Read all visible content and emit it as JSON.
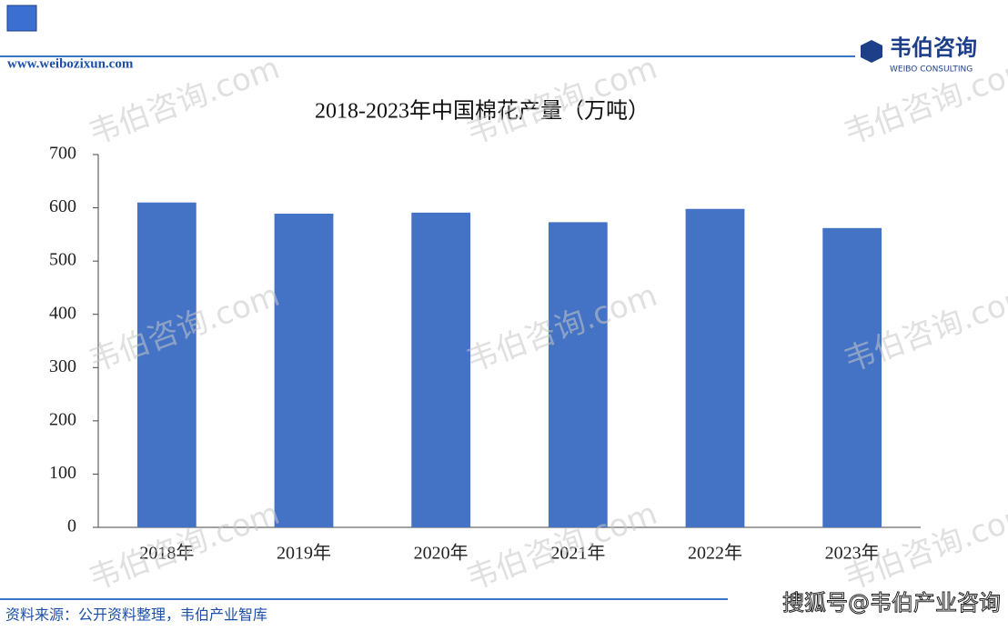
{
  "header": {
    "url": "www.weibozixun.com",
    "logo_cn": "韦伯咨询",
    "logo_en": "WEIBO CONSULTING"
  },
  "footer": {
    "source": "资料来源：公开资料整理，韦伯产业智库",
    "overlay": "搜狐号@韦伯产业咨询"
  },
  "watermark": "韦伯咨询.com",
  "chart_data": {
    "type": "bar",
    "title": "2018-2023年中国棉花产量（万吨）",
    "categories": [
      "2018年",
      "2019年",
      "2020年",
      "2021年",
      "2022年",
      "2023年"
    ],
    "values": [
      610,
      589,
      591,
      573,
      598,
      562
    ],
    "color": "#4472c4",
    "ylim": [
      0,
      700
    ],
    "yticks": [
      0,
      100,
      200,
      300,
      400,
      500,
      600,
      700
    ],
    "grid": false
  }
}
